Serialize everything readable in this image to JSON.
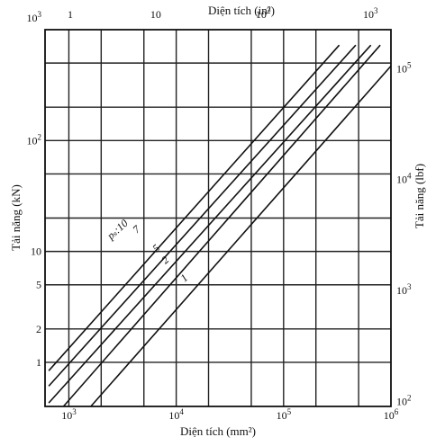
{
  "chart_data": {
    "type": "line",
    "title": "",
    "xlabel": "Diện tích (mm²)",
    "x2label": "Diện tích (in²)",
    "ylabel": "Tải năng (kN)",
    "y2label": "Tải năng (lbf)",
    "x_scale": "log",
    "y_scale": "log",
    "xlim": [
      600,
      1000000
    ],
    "ylim": [
      0.4,
      1000
    ],
    "grid": true,
    "legend": "none",
    "x_ticks": [
      {
        "value": 1000,
        "base": "10",
        "exp": "3"
      },
      {
        "value": 10000,
        "base": "10",
        "exp": "4"
      },
      {
        "value": 100000,
        "base": "10",
        "exp": "5"
      },
      {
        "value": 1000000,
        "base": "10",
        "exp": "6"
      }
    ],
    "x2_ticks": [
      {
        "value": 645,
        "base": "1",
        "exp": ""
      },
      {
        "value": 6450,
        "base": "10",
        "exp": ""
      },
      {
        "value": 64500,
        "base": "10",
        "exp": "2"
      },
      {
        "value": 645000,
        "base": "10",
        "exp": "3"
      }
    ],
    "y_ticks": [
      {
        "value": 1,
        "base": "1",
        "exp": ""
      },
      {
        "value": 2,
        "base": "2",
        "exp": ""
      },
      {
        "value": 5,
        "base": "5",
        "exp": ""
      },
      {
        "value": 10,
        "base": "10",
        "exp": ""
      },
      {
        "value": 100,
        "base": "10",
        "exp": "2"
      },
      {
        "value": 1000,
        "base": "10",
        "exp": "3"
      }
    ],
    "y2_ticks": [
      {
        "value": 0.445,
        "base": "10",
        "exp": "2"
      },
      {
        "value": 4.45,
        "base": "10",
        "exp": "3"
      },
      {
        "value": 44.5,
        "base": "10",
        "exp": "4"
      },
      {
        "value": 445,
        "base": "10",
        "exp": "5"
      }
    ],
    "x_grid": [
      1000,
      2000,
      5000,
      10000,
      20000,
      50000,
      100000,
      200000,
      500000
    ],
    "y_grid": [
      1,
      2,
      5,
      10,
      20,
      50,
      100,
      200,
      500
    ],
    "series_annotation": "pₛ:10",
    "series": [
      {
        "name": "10",
        "x": [
          650,
          330000
        ],
        "y": [
          0.84,
          725
        ]
      },
      {
        "name": "7",
        "x": [
          650,
          470000
        ],
        "y": [
          0.61,
          725
        ]
      },
      {
        "name": "5",
        "x": [
          650,
          650000
        ],
        "y": [
          0.43,
          725
        ]
      },
      {
        "name": "2",
        "x": [
          890,
          795000
        ],
        "y": [
          0.4,
          725
        ]
      },
      {
        "name": "1",
        "x": [
          1600,
          1000000
        ],
        "y": [
          0.4,
          470
        ]
      }
    ]
  }
}
